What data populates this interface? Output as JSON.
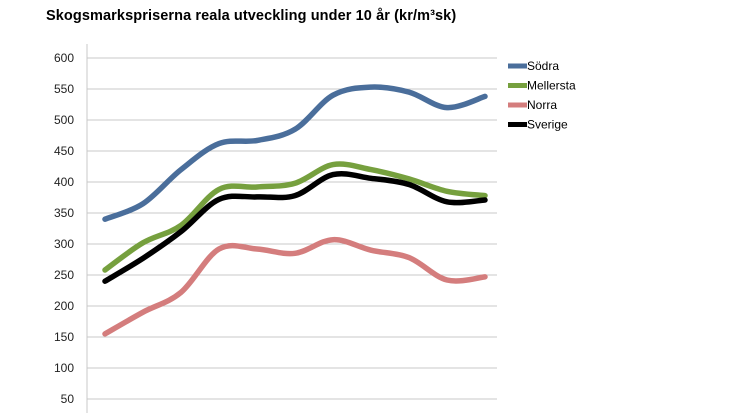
{
  "chart_data": {
    "type": "line",
    "title": "Skogsmarkspriserna reala utveckling under 10 år (kr/m³sk)",
    "xlabel": "",
    "ylabel": "",
    "ylim": [
      50,
      620
    ],
    "yticks": [
      50,
      100,
      150,
      200,
      250,
      300,
      350,
      400,
      450,
      500,
      550,
      600
    ],
    "grid": "horizontal",
    "legend_position": "right",
    "x": [
      1,
      2,
      3,
      4,
      5,
      6,
      7,
      8,
      9,
      10,
      11
    ],
    "series": [
      {
        "name": "Södra",
        "color": "#4a6e9b",
        "values": [
          340,
          365,
          420,
          462,
          467,
          485,
          540,
          553,
          545,
          520,
          538
        ]
      },
      {
        "name": "Mellersta",
        "color": "#76a03e",
        "values": [
          258,
          302,
          330,
          388,
          392,
          398,
          428,
          420,
          405,
          385,
          378
        ]
      },
      {
        "name": "Norra",
        "color": "#d47d7d",
        "values": [
          155,
          190,
          222,
          292,
          292,
          285,
          307,
          290,
          278,
          242,
          247
        ]
      },
      {
        "name": "Sverige",
        "color": "#000000",
        "values": [
          240,
          277,
          320,
          372,
          376,
          378,
          412,
          406,
          396,
          368,
          371
        ]
      }
    ]
  }
}
